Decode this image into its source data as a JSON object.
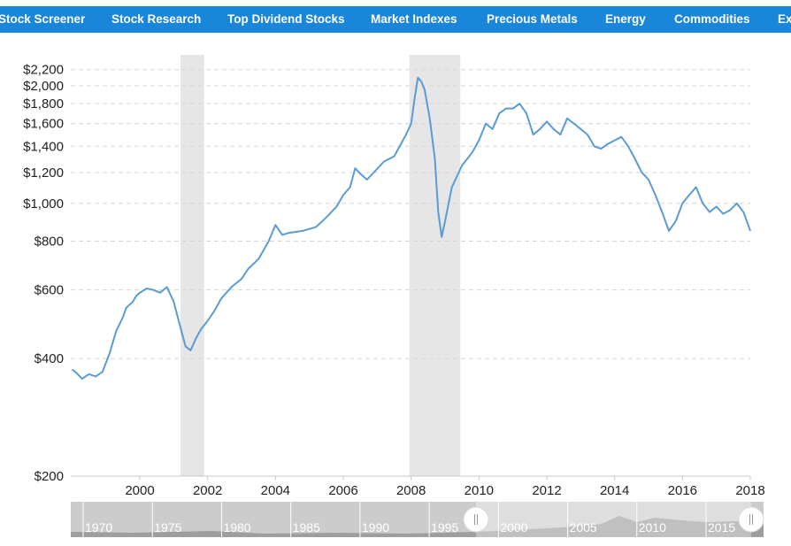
{
  "nav": {
    "items": [
      {
        "label": "Stock Screener"
      },
      {
        "label": "Stock Research"
      },
      {
        "label": "Top Dividend Stocks"
      },
      {
        "label": "Market Indexes"
      },
      {
        "label": "Precious Metals"
      },
      {
        "label": "Energy"
      },
      {
        "label": "Commodities"
      },
      {
        "label": "Ex"
      }
    ]
  },
  "colors": {
    "nav_bg": "#1a86d9",
    "line": "#5b9bd5",
    "recession": "#e6e6e6",
    "grid": "#d5d5d5",
    "navigator_bg": "#cccccc"
  },
  "chart_data": {
    "type": "line",
    "y_scale": "log",
    "grid": "horizontal dashed",
    "xlim": [
      1998,
      2018
    ],
    "ylim": [
      200,
      2300
    ],
    "x_ticks": [
      "2000",
      "2002",
      "2004",
      "2006",
      "2008",
      "2010",
      "2012",
      "2014",
      "2016",
      "2018"
    ],
    "y_ticks": [
      {
        "value": 200,
        "label": "$200"
      },
      {
        "value": 400,
        "label": "$400"
      },
      {
        "value": 600,
        "label": "$600"
      },
      {
        "value": 800,
        "label": "$800"
      },
      {
        "value": 1000,
        "label": "$1,000"
      },
      {
        "value": 1200,
        "label": "$1,200"
      },
      {
        "value": 1400,
        "label": "$1,400"
      },
      {
        "value": 1600,
        "label": "$1,600"
      },
      {
        "value": 1800,
        "label": "$1,800"
      },
      {
        "value": 2000,
        "label": "$2,000"
      },
      {
        "value": 2200,
        "label": "$2,200"
      }
    ],
    "recessions": [
      [
        2001.2,
        2001.9
      ],
      [
        2007.95,
        2009.45
      ]
    ],
    "series": [
      {
        "x": [
          1998.0,
          1998.1,
          1998.3,
          1998.5,
          1998.7,
          1998.9,
          1999.1,
          1999.3,
          1999.5,
          1999.6,
          1999.8,
          1999.9,
          2000.0,
          2000.2,
          2000.4,
          2000.6,
          2000.8,
          2001.0,
          2001.2,
          2001.35,
          2001.5,
          2001.65,
          2001.8,
          2002.0,
          2002.2,
          2002.4,
          2002.7,
          2003.0,
          2003.2,
          2003.5,
          2003.8,
          2004.0,
          2004.2,
          2004.4,
          2004.8,
          2005.2,
          2005.5,
          2005.8,
          2006.0,
          2006.2,
          2006.35,
          2006.5,
          2006.7,
          2006.9,
          2007.2,
          2007.5,
          2007.7,
          2007.85,
          2008.0,
          2008.1,
          2008.2,
          2008.3,
          2008.4,
          2008.55,
          2008.7,
          2008.8,
          2008.9,
          2009.0,
          2009.2,
          2009.5,
          2009.8,
          2010.0,
          2010.2,
          2010.4,
          2010.6,
          2010.8,
          2011.0,
          2011.2,
          2011.4,
          2011.6,
          2011.8,
          2012.0,
          2012.2,
          2012.4,
          2012.6,
          2012.8,
          2013.0,
          2013.2,
          2013.4,
          2013.6,
          2013.8,
          2014.0,
          2014.2,
          2014.4,
          2014.6,
          2014.8,
          2015.0,
          2015.2,
          2015.4,
          2015.6,
          2015.8,
          2016.0,
          2016.2,
          2016.4,
          2016.6,
          2016.8,
          2017.0,
          2017.2,
          2017.4,
          2017.6,
          2017.8,
          2018.0
        ],
        "values": [
          375,
          370,
          355,
          365,
          360,
          370,
          410,
          470,
          510,
          540,
          560,
          580,
          590,
          605,
          600,
          590,
          610,
          560,
          480,
          430,
          420,
          450,
          475,
          500,
          530,
          570,
          610,
          640,
          680,
          720,
          800,
          880,
          830,
          840,
          850,
          870,
          920,
          980,
          1050,
          1100,
          1230,
          1190,
          1150,
          1200,
          1280,
          1320,
          1420,
          1500,
          1600,
          1850,
          2100,
          2050,
          1950,
          1650,
          1300,
          950,
          820,
          900,
          1100,
          1250,
          1350,
          1450,
          1600,
          1550,
          1700,
          1750,
          1750,
          1800,
          1700,
          1500,
          1550,
          1620,
          1550,
          1500,
          1650,
          1600,
          1550,
          1500,
          1400,
          1380,
          1420,
          1450,
          1480,
          1400,
          1300,
          1200,
          1150,
          1050,
          950,
          850,
          900,
          1000,
          1050,
          1100,
          1000,
          950,
          980,
          940,
          960,
          1000,
          950,
          850
        ]
      }
    ]
  },
  "navigator": {
    "years": [
      "1970",
      "1975",
      "1980",
      "1985",
      "1990",
      "1995",
      "2000",
      "2005",
      "2010",
      "2015"
    ],
    "range": [
      "1998",
      "2018"
    ]
  }
}
